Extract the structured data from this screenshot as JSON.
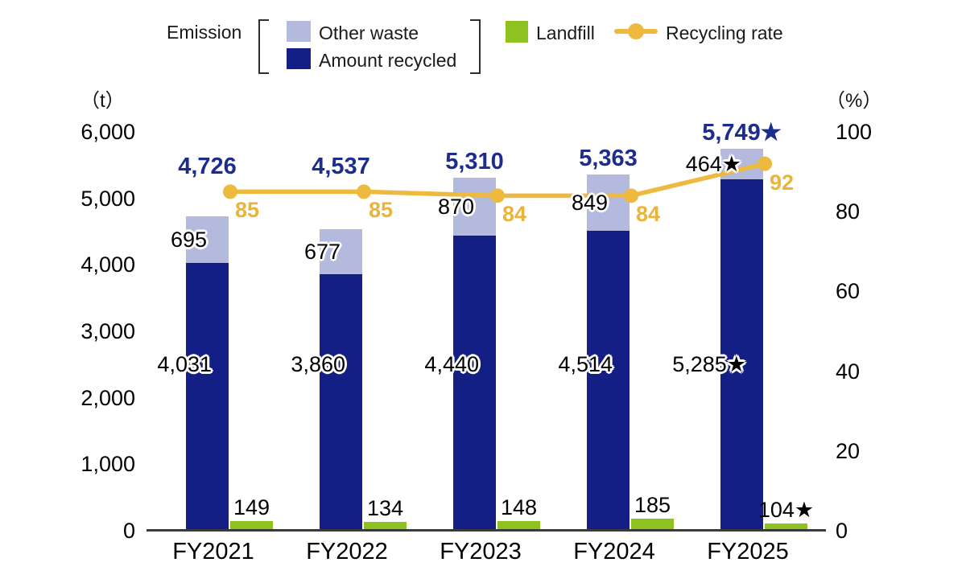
{
  "legend": {
    "emission": "Emission",
    "other_waste": "Other waste",
    "amount_recycled": "Amount recycled",
    "landfill": "Landfill",
    "recycling_rate": "Recycling rate"
  },
  "axes": {
    "left_unit": "（t）",
    "right_unit": "（%）",
    "left_ticks": [
      {
        "value": 0,
        "label": "0"
      },
      {
        "value": 1000,
        "label": "1,000"
      },
      {
        "value": 2000,
        "label": "2,000"
      },
      {
        "value": 3000,
        "label": "3,000"
      },
      {
        "value": 4000,
        "label": "4,000"
      },
      {
        "value": 5000,
        "label": "5,000"
      },
      {
        "value": 6000,
        "label": "6,000"
      }
    ],
    "right_ticks": [
      {
        "value": 0,
        "label": "0"
      },
      {
        "value": 20,
        "label": "20"
      },
      {
        "value": 40,
        "label": "40"
      },
      {
        "value": 60,
        "label": "60"
      },
      {
        "value": 80,
        "label": "80"
      },
      {
        "value": 100,
        "label": "100"
      }
    ]
  },
  "colors": {
    "navy_bar": "#141f85",
    "lavender_bar": "#b4bade",
    "green_bar": "#8ec221",
    "orange_line": "#edb93f",
    "total_text": "#1d2d8e",
    "rate_text": "#eab33c",
    "axis_line": "#3a3a3a"
  },
  "chart_data": {
    "type": "bar",
    "subtype": "stacked-bars-with-line",
    "categories": [
      "FY2021",
      "FY2022",
      "FY2023",
      "FY2024",
      "FY2025"
    ],
    "series": [
      {
        "name": "Amount recycled",
        "role": "stack-bottom-bar",
        "axis": "left",
        "values": [
          4031,
          3860,
          4440,
          4514,
          5285
        ],
        "labels": [
          "4,031",
          "3,860",
          "4,440",
          "4,514",
          "5,285★"
        ]
      },
      {
        "name": "Other waste",
        "role": "stack-top-bar",
        "axis": "left",
        "values": [
          695,
          677,
          870,
          849,
          464
        ],
        "labels": [
          "695",
          "677",
          "870",
          "849",
          "464★"
        ]
      },
      {
        "name": "Emission",
        "role": "stack-total-label",
        "axis": "left",
        "values": [
          4726,
          4537,
          5310,
          5363,
          5749
        ],
        "labels": [
          "4,726",
          "4,537",
          "5,310",
          "5,363",
          "5,749★"
        ]
      },
      {
        "name": "Landfill",
        "role": "side-bar",
        "axis": "left",
        "values": [
          149,
          134,
          148,
          185,
          104
        ],
        "labels": [
          "149",
          "134",
          "148",
          "185",
          "104★"
        ]
      },
      {
        "name": "Recycling rate",
        "role": "line",
        "axis": "right",
        "values": [
          85,
          85,
          84,
          84,
          92
        ],
        "labels": [
          "85",
          "85",
          "84",
          "84",
          "92"
        ]
      }
    ],
    "ylabel_left_unit": "t",
    "ylabel_right_unit": "%",
    "ylim_left": [
      0,
      6000
    ],
    "ylim_right": [
      0,
      100
    ],
    "grid": false,
    "legend_position": "top"
  }
}
